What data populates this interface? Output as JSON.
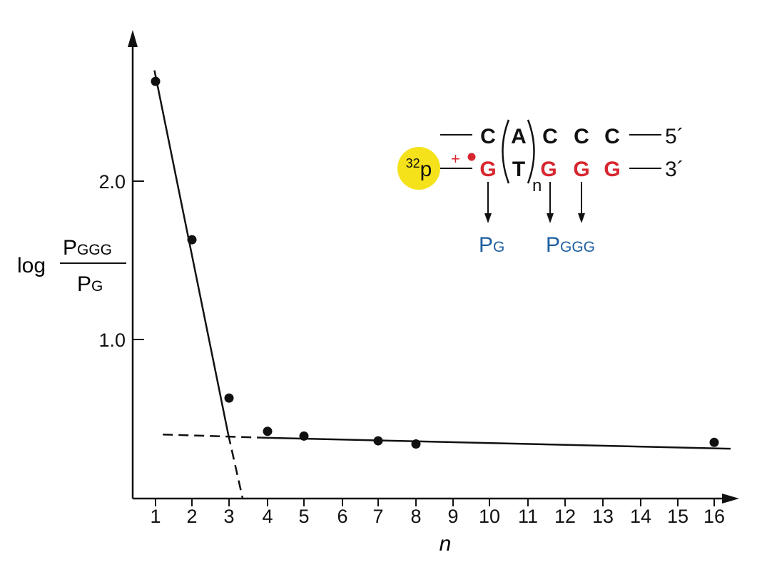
{
  "chart_data": {
    "type": "scatter",
    "xlabel": "n",
    "ylabel": {
      "prefix": "log",
      "numerator": {
        "main": "P",
        "sub": "GGG"
      },
      "denominator": {
        "main": "P",
        "sub": "G"
      }
    },
    "x_tick_labels": [
      "1",
      "2",
      "3",
      "4",
      "5",
      "6",
      "7",
      "8",
      "9",
      "10",
      "11",
      "12",
      "13",
      "14",
      "15",
      "16"
    ],
    "y_ticks": [
      {
        "value": 2.0,
        "label": "2.0"
      },
      {
        "value": 1.0,
        "label": "1.0"
      }
    ],
    "ylim": [
      -0.2,
      2.85
    ],
    "points": [
      {
        "x": "1",
        "y": 2.63
      },
      {
        "x": "2",
        "y": 1.63
      },
      {
        "x": "3",
        "y": 0.63
      },
      {
        "x": "4",
        "y": 0.42
      },
      {
        "x": "5",
        "y": 0.39
      },
      {
        "x": "7",
        "y": 0.36
      },
      {
        "x": "8",
        "y": 0.34
      },
      {
        "x": "16",
        "y": 0.35
      }
    ],
    "fit_lines": [
      {
        "name": "steep",
        "from": {
          "x": 0.97,
          "y": 2.7
        },
        "to": {
          "x": 2.98,
          "y": 0.4
        },
        "dash_to": {
          "x": 3.35,
          "y": 0.0
        }
      },
      {
        "name": "shallow",
        "dash_from": {
          "x": 1.2,
          "y": 0.4
        },
        "from": {
          "x": 3.85,
          "y": 0.38
        },
        "to": {
          "x": 16.45,
          "y": 0.31
        }
      }
    ],
    "grid": false,
    "legend": "none"
  },
  "inset": {
    "top_strand": {
      "bases": [
        "C",
        "A",
        "C",
        "C",
        "C"
      ],
      "end_label": "5´"
    },
    "bottom_strand": {
      "bases": [
        "G",
        "T",
        "G",
        "G",
        "G"
      ],
      "end_label": "3´"
    },
    "repeat_subscript": "n",
    "plus_sign": "+",
    "label": {
      "superscript": "32",
      "text": "p"
    },
    "products": [
      {
        "main": "P",
        "sub": "G"
      },
      {
        "main": "P",
        "sub": "GGG"
      }
    ],
    "colors": {
      "label_fill": "#f5e21b",
      "guanine": "#d7262f",
      "product": "#1e5fa0",
      "ink": "#111111"
    }
  }
}
